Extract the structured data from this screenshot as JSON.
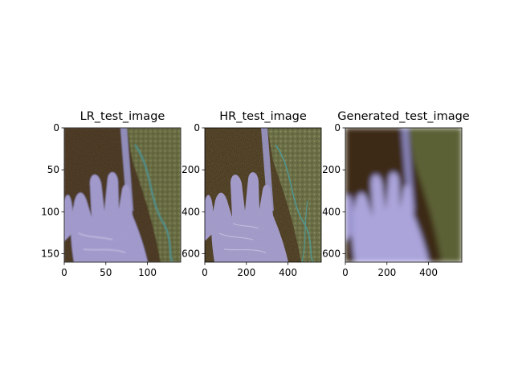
{
  "chart_data": [
    {
      "type": "image",
      "title": "LR_test_image",
      "xlim": [
        0,
        140
      ],
      "ylim": [
        0,
        160
      ],
      "x_ticks": [
        0,
        50,
        100
      ],
      "y_ticks": [
        0,
        50,
        100,
        150
      ],
      "y_inverted": true,
      "image_content": "low-resolution photo of a purple-toned hand over olive textured fabric"
    },
    {
      "type": "image",
      "title": "HR_test_image",
      "xlim": [
        0,
        560
      ],
      "ylim": [
        0,
        640
      ],
      "x_ticks": [
        0,
        200,
        400
      ],
      "y_ticks": [
        0,
        200,
        400,
        600
      ],
      "y_inverted": true,
      "image_content": "high-resolution photo of a purple-toned hand over olive textured fabric"
    },
    {
      "type": "image",
      "title": "Generated_test_image",
      "xlim": [
        0,
        560
      ],
      "ylim": [
        0,
        640
      ],
      "x_ticks": [
        0,
        200,
        400
      ],
      "y_ticks": [
        0,
        200,
        400,
        600
      ],
      "y_inverted": true,
      "image_content": "blurred generated photo of a purple-toned hand over olive fabric"
    }
  ],
  "colors": {
    "background": "#3c2c12",
    "fabric": "#5b6136",
    "hand": "#9c95d0",
    "hand_light": "#c0bbe8",
    "cord": "#8a86bc",
    "teal_thread": "#3b8e8a"
  }
}
